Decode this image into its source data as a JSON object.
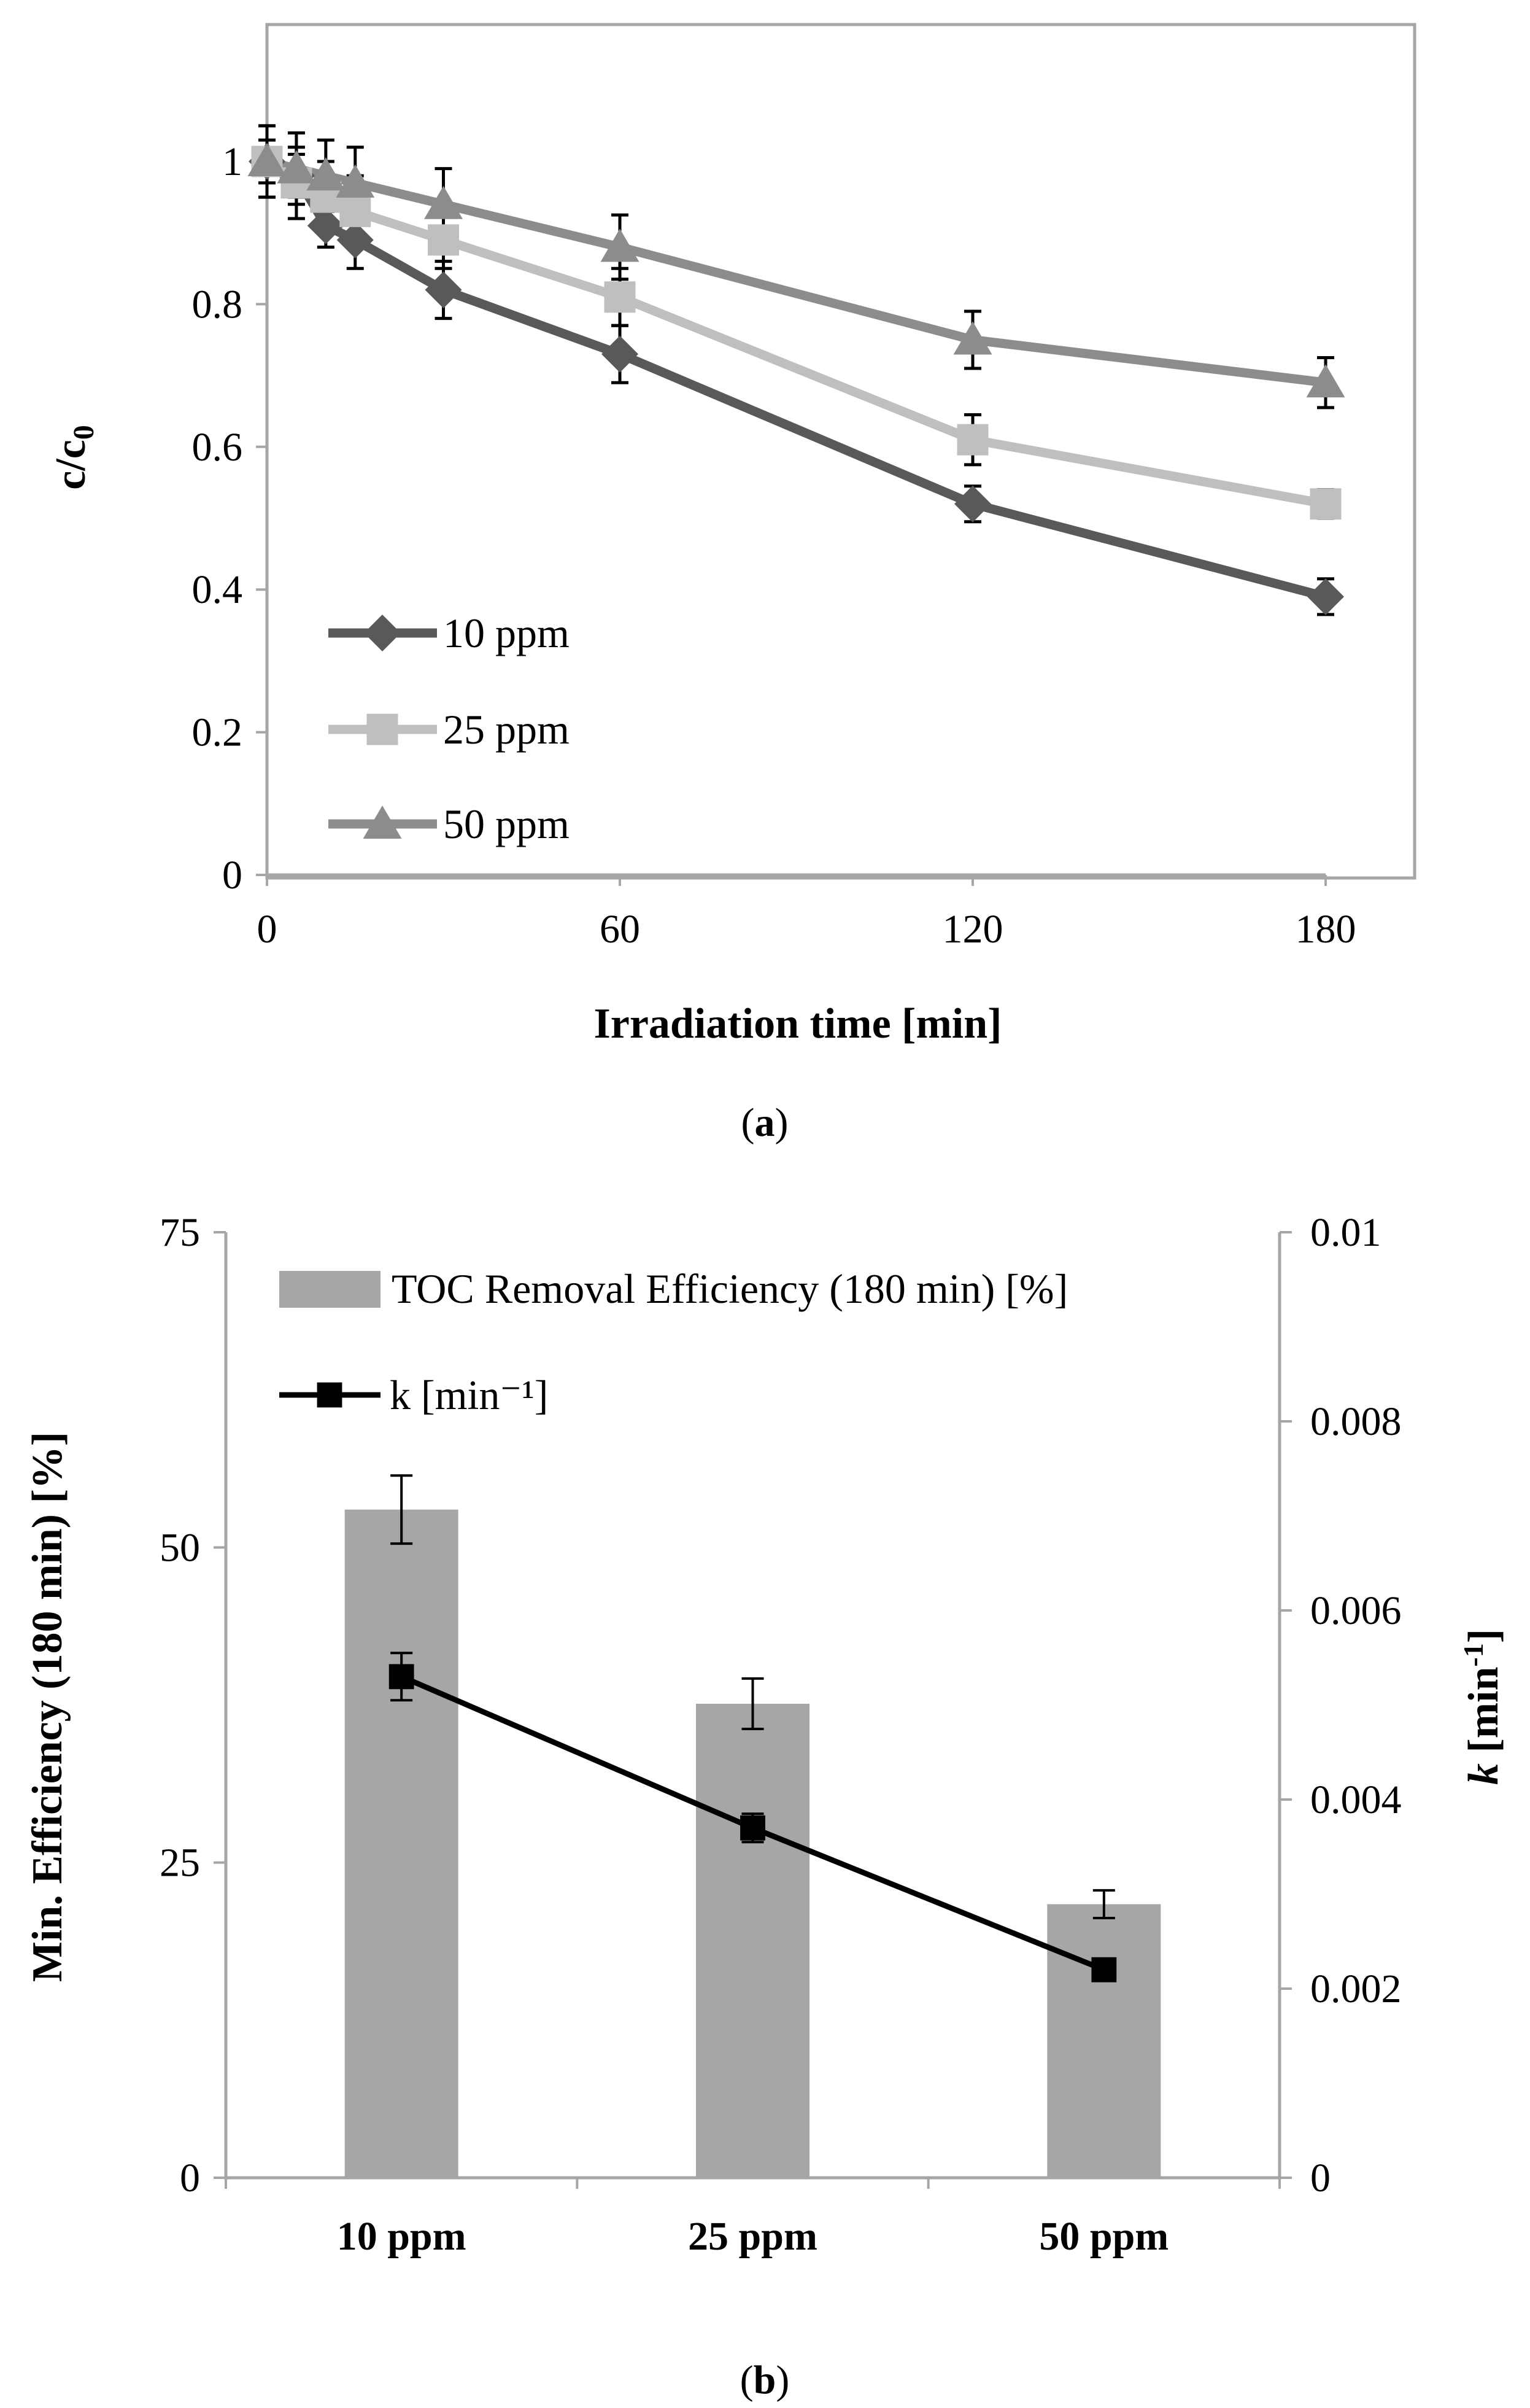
{
  "chart_data": [
    {
      "type": "line",
      "caption": "a",
      "xlabel": "Irradiation time [min]",
      "ylabel_main": "c/c",
      "ylabel_sub": "0",
      "xlim": [
        0,
        180
      ],
      "ylim": [
        0,
        1
      ],
      "x_ticks": [
        "0",
        "60",
        "120",
        "180"
      ],
      "y_ticks": [
        "0",
        "0.2",
        "0.4",
        "0.6",
        "0.8",
        "1"
      ],
      "x": [
        0,
        5,
        10,
        15,
        30,
        60,
        120,
        180
      ],
      "series": [
        {
          "name": "10 ppm",
          "color": "#595959",
          "marker": "diamond",
          "values": [
            1.0,
            0.98,
            0.91,
            0.89,
            0.82,
            0.73,
            0.52,
            0.39
          ],
          "errors": [
            0.03,
            0.03,
            0.03,
            0.04,
            0.04,
            0.04,
            0.025,
            0.025
          ]
        },
        {
          "name": "25 ppm",
          "color": "#bfbfbf",
          "marker": "square",
          "values": [
            1.0,
            0.97,
            0.95,
            0.93,
            0.89,
            0.81,
            0.61,
            0.52
          ],
          "errors": [
            0.05,
            0.05,
            0.05,
            0.05,
            0.04,
            0.04,
            0.035,
            0.02
          ]
        },
        {
          "name": "50 ppm",
          "color": "#8c8c8c",
          "marker": "triangle",
          "values": [
            1.0,
            0.99,
            0.98,
            0.97,
            0.94,
            0.88,
            0.75,
            0.69
          ],
          "errors": [
            0.05,
            0.05,
            0.05,
            0.05,
            0.05,
            0.045,
            0.04,
            0.035
          ]
        }
      ],
      "legend_position": "bottom-left",
      "grid": false
    },
    {
      "type": "bar",
      "caption": "b",
      "categories": [
        "10 ppm",
        "25 ppm",
        "50 ppm"
      ],
      "ylabel": "Min. Efficiency  (180 min) [%]",
      "ylabel2_italic": "k",
      "ylabel2_rest": " [min",
      "ylabel2_sup": "-1",
      "ylabel2_close": "]",
      "ylim": [
        0,
        75
      ],
      "ylim2": [
        0,
        0.01
      ],
      "y_ticks": [
        "0",
        "25",
        "50",
        "75"
      ],
      "y2_ticks": [
        "0",
        "0.002",
        "0.004",
        "0.006",
        "0.008",
        "0.01"
      ],
      "series": [
        {
          "name": "TOC Removal Efficiency (180 min) [%]",
          "type": "bar",
          "axis": "left",
          "color": "#a6a6a6",
          "values": [
            53,
            37.6,
            21.7
          ],
          "errors": [
            2.7,
            2.0,
            1.1
          ]
        },
        {
          "name": "k [min⁻¹]",
          "type": "line",
          "axis": "right",
          "color": "#000000",
          "marker": "square",
          "values": [
            0.0053,
            0.0037,
            0.0022
          ],
          "errors": [
            0.00025,
            0.00015,
            0.0001
          ]
        }
      ],
      "legend_position": "top",
      "grid": false
    }
  ]
}
